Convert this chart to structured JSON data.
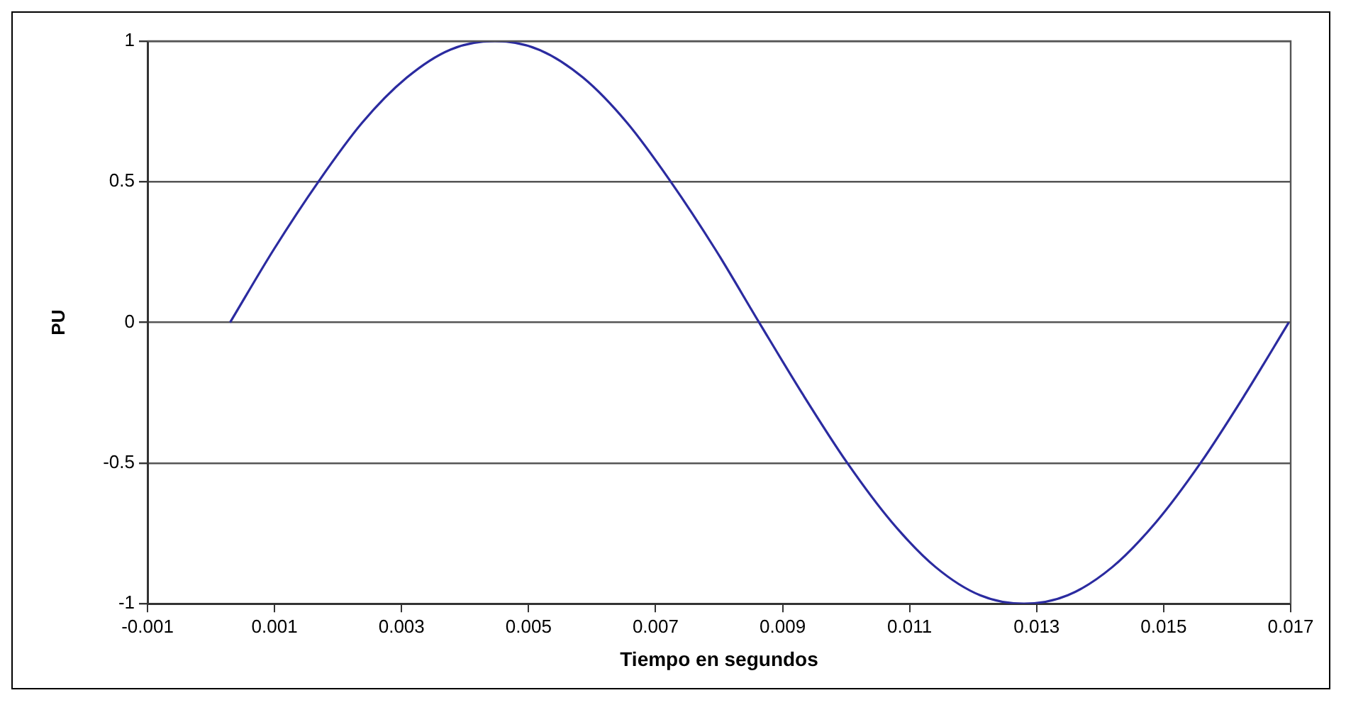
{
  "chart_data": {
    "type": "line",
    "xlabel": "Tiempo en segundos",
    "ylabel": "PU",
    "x": [
      0.0003,
      0.00099,
      0.00169,
      0.00238,
      0.00308,
      0.00377,
      0.00447,
      0.00516,
      0.00586,
      0.00655,
      0.00724,
      0.00794,
      0.00863,
      0.00933,
      0.01002,
      0.01072,
      0.01141,
      0.01211,
      0.0128,
      0.01349,
      0.01419,
      0.01488,
      0.01558,
      0.01627,
      0.01697
    ],
    "series": [
      {
        "color": "#2b2ba0",
        "values": [
          0,
          0.26,
          0.5,
          0.71,
          0.87,
          0.97,
          1,
          0.97,
          0.87,
          0.71,
          0.5,
          0.26,
          0,
          -0.26,
          -0.5,
          -0.71,
          -0.87,
          -0.97,
          -1,
          -0.97,
          -0.87,
          -0.71,
          -0.5,
          -0.26,
          0
        ]
      }
    ],
    "xlim": [
      -0.001,
      0.017
    ],
    "xticks": [
      -0.001,
      0.001,
      0.003,
      0.005,
      0.007,
      0.009,
      0.011,
      0.013,
      0.015,
      0.017
    ],
    "ylim": [
      -1,
      1
    ],
    "yticks": [
      -1,
      -0.5,
      0,
      0.5,
      1
    ],
    "grid": "y",
    "marker": "none",
    "line_style": "solid",
    "legend": false
  }
}
